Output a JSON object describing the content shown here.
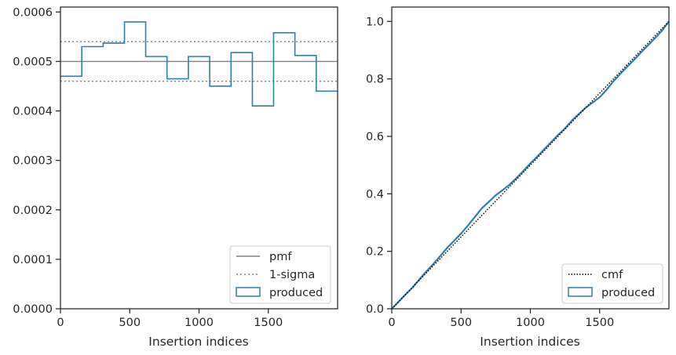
{
  "chart_data": [
    {
      "type": "step",
      "xlabel": "Insertion indices",
      "ylabel": "",
      "xlim": [
        0,
        2000
      ],
      "ylim": [
        0,
        0.00061
      ],
      "xticks": [
        0,
        500,
        1000,
        1500
      ],
      "xtick_labels": [
        "0",
        "500",
        "1000",
        "1500"
      ],
      "yticks": [
        0,
        0.0001,
        0.0002,
        0.0003,
        0.0004,
        0.0005,
        0.0006
      ],
      "ytick_labels": [
        "0.0000",
        "0.0001",
        "0.0002",
        "0.0003",
        "0.0004",
        "0.0005",
        "0.0006"
      ],
      "grid": false,
      "legend_position": "lower-right",
      "pmf": {
        "name": "pmf",
        "value": 0.0005,
        "color": "#808080"
      },
      "sigma": {
        "name": "1-sigma",
        "lower": 0.00046,
        "upper": 0.00054,
        "color": "#808080"
      },
      "produced": {
        "name": "produced",
        "color": "#2f7fae",
        "bin_edges": [
          0,
          154,
          308,
          462,
          615,
          769,
          923,
          1077,
          1231,
          1385,
          1538,
          1692,
          1846,
          2000
        ],
        "values": [
          0.00047,
          0.00053,
          0.000537,
          0.00058,
          0.00051,
          0.000465,
          0.00051,
          0.00045,
          0.000518,
          0.00041,
          0.000558,
          0.000512,
          0.00044
        ]
      }
    },
    {
      "type": "line",
      "xlabel": "Insertion indices",
      "ylabel": "",
      "xlim": [
        0,
        2000
      ],
      "ylim": [
        0,
        1.05
      ],
      "xticks": [
        0,
        500,
        1000,
        1500
      ],
      "xtick_labels": [
        "0",
        "500",
        "1000",
        "1500"
      ],
      "yticks": [
        0,
        0.2,
        0.4,
        0.6,
        0.8,
        1.0
      ],
      "ytick_labels": [
        "0.0",
        "0.2",
        "0.4",
        "0.6",
        "0.8",
        "1.0"
      ],
      "grid": false,
      "legend_position": "lower-right",
      "cmf": {
        "name": "cmf",
        "x": [
          0,
          2000
        ],
        "y": [
          0,
          1
        ],
        "color": "#000000"
      },
      "produced": {
        "name": "produced",
        "color": "#2f7fae",
        "x": [
          0,
          50,
          100,
          150,
          200,
          250,
          300,
          350,
          400,
          450,
          500,
          550,
          600,
          650,
          700,
          750,
          800,
          850,
          900,
          950,
          1000,
          1050,
          1100,
          1150,
          1200,
          1250,
          1300,
          1350,
          1400,
          1450,
          1500,
          1550,
          1600,
          1650,
          1700,
          1750,
          1800,
          1850,
          1900,
          1950,
          2000
        ],
        "y": [
          0,
          0.025,
          0.05,
          0.074,
          0.103,
          0.13,
          0.156,
          0.184,
          0.212,
          0.237,
          0.262,
          0.29,
          0.32,
          0.35,
          0.372,
          0.395,
          0.413,
          0.432,
          0.455,
          0.48,
          0.506,
          0.53,
          0.555,
          0.58,
          0.605,
          0.628,
          0.655,
          0.678,
          0.7,
          0.718,
          0.736,
          0.762,
          0.792,
          0.818,
          0.843,
          0.867,
          0.893,
          0.917,
          0.942,
          0.968,
          1.0
        ]
      }
    }
  ]
}
